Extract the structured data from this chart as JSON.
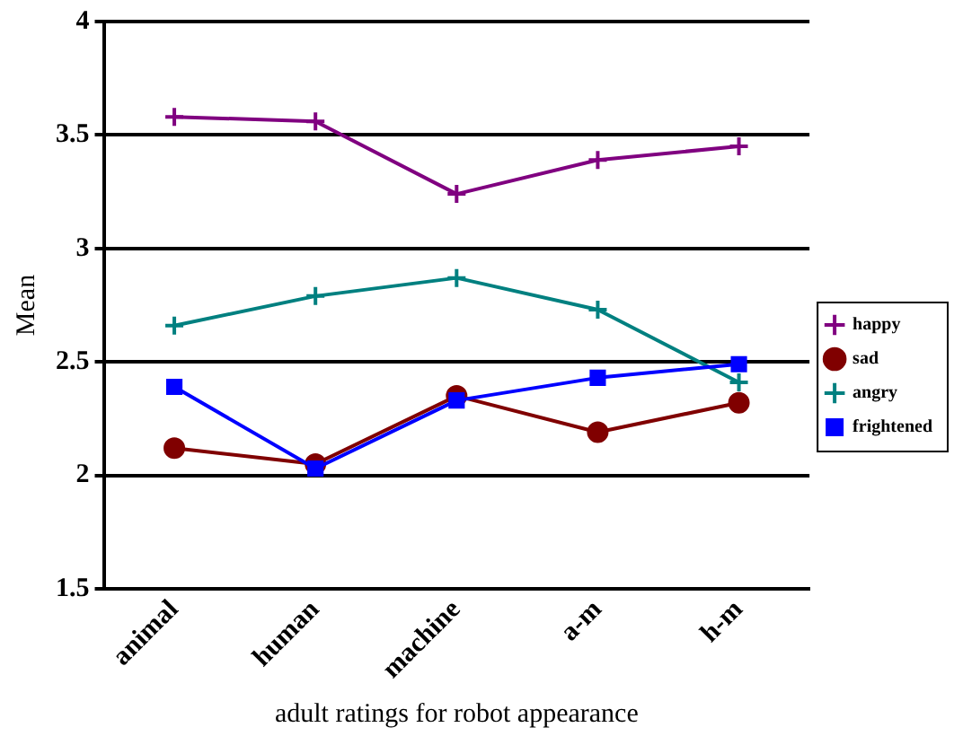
{
  "chart_data": {
    "type": "line",
    "xlabel": "adult ratings for robot appearance",
    "ylabel": "Mean",
    "categories": [
      "animal",
      "human",
      "machine",
      "a-m",
      "h-m"
    ],
    "series": [
      {
        "name": "happy",
        "color": "#800080",
        "marker": "cross",
        "values": [
          3.58,
          3.56,
          3.24,
          3.39,
          3.45
        ]
      },
      {
        "name": "sad",
        "color": "#800000",
        "marker": "circle",
        "values": [
          2.12,
          2.05,
          2.35,
          2.19,
          2.32
        ]
      },
      {
        "name": "angry",
        "color": "#008080",
        "marker": "cross",
        "values": [
          2.66,
          2.79,
          2.87,
          2.73,
          2.41
        ]
      },
      {
        "name": "frightened",
        "color": "#0000ff",
        "marker": "square",
        "values": [
          2.39,
          2.03,
          2.33,
          2.43,
          2.49
        ]
      }
    ],
    "ylim": [
      1.5,
      4
    ],
    "yticks": [
      1.5,
      2,
      2.5,
      3,
      3.5,
      4
    ],
    "grid": "y",
    "legend": "right",
    "line_style": "solid"
  }
}
